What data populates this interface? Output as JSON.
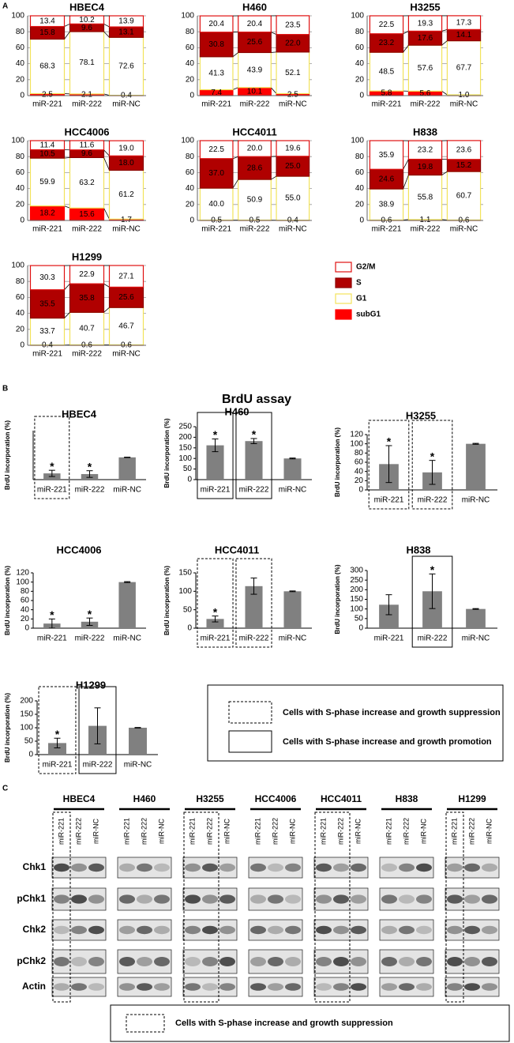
{
  "panel_a": {
    "letter": "A",
    "series": [
      {
        "name": "subG1",
        "color": "#ff0000",
        "fill": "#ff0000"
      },
      {
        "name": "G1",
        "color": "#f2e35a",
        "fill": "#ffffff"
      },
      {
        "name": "S",
        "color": "#8b0000",
        "fill": "#b00000"
      },
      {
        "name": "G2/M",
        "color": "#e01010",
        "fill": "#ffffff"
      }
    ],
    "charts": [
      {
        "type": "stacked-bar",
        "title": "HBEC4",
        "categories": [
          "miR-221",
          "miR-222",
          "miR-NC"
        ],
        "ylim": [
          0,
          100
        ],
        "yticks": [
          0,
          20,
          40,
          60,
          80,
          100
        ],
        "values": [
          [
            2.5,
            2.1,
            0.4
          ],
          [
            68.3,
            78.1,
            72.6
          ],
          [
            15.8,
            9.6,
            13.1
          ],
          [
            13.4,
            10.2,
            13.9
          ]
        ],
        "value_labels": [
          [
            "2.5",
            "2.1",
            "0.4"
          ],
          [
            "68.3",
            "78.1",
            "72.6"
          ],
          [
            "15.8",
            "9.6",
            "13.1"
          ],
          [
            "13.4",
            "10.2",
            "13.9"
          ]
        ]
      },
      {
        "type": "stacked-bar",
        "title": "H460",
        "categories": [
          "miR-221",
          "miR-222",
          "miR-NC"
        ],
        "ylim": [
          0,
          100
        ],
        "yticks": [
          0,
          20,
          40,
          60,
          80,
          100
        ],
        "values": [
          [
            7.4,
            10.1,
            2.5
          ],
          [
            41.3,
            43.9,
            52.1
          ],
          [
            30.8,
            25.6,
            22.0
          ],
          [
            20.4,
            20.4,
            23.5
          ]
        ],
        "value_labels": [
          [
            "7.4",
            "10.1",
            "2.5"
          ],
          [
            "41.3",
            "43.9",
            "52.1"
          ],
          [
            "30.8",
            "25.6",
            "22.0"
          ],
          [
            "20.4",
            "20.4",
            "23.5"
          ]
        ]
      },
      {
        "type": "stacked-bar",
        "title": "H3255",
        "categories": [
          "miR-221",
          "miR-222",
          "miR-NC"
        ],
        "ylim": [
          0,
          100
        ],
        "yticks": [
          0,
          20,
          40,
          60,
          80,
          100
        ],
        "values": [
          [
            5.8,
            5.6,
            1.0
          ],
          [
            48.5,
            57.6,
            67.7
          ],
          [
            23.2,
            17.6,
            14.1
          ],
          [
            22.5,
            19.3,
            17.3
          ]
        ],
        "value_labels": [
          [
            "5.8",
            "5.6",
            "1.0"
          ],
          [
            "48.5",
            "57.6",
            "67.7"
          ],
          [
            "23.2",
            "17.6",
            "14.1"
          ],
          [
            "22.5",
            "19.3",
            "17.3"
          ]
        ]
      },
      {
        "type": "stacked-bar",
        "title": "HCC4006",
        "categories": [
          "miR-221",
          "miR-222",
          "miR-NC"
        ],
        "ylim": [
          0,
          100
        ],
        "yticks": [
          0,
          20,
          40,
          60,
          80,
          100
        ],
        "values": [
          [
            18.2,
            15.6,
            1.7
          ],
          [
            59.9,
            63.2,
            61.2
          ],
          [
            10.5,
            9.6,
            18.0
          ],
          [
            11.4,
            11.6,
            19.0
          ]
        ],
        "value_labels": [
          [
            "18.2",
            "15.6",
            "1.7"
          ],
          [
            "59.9",
            "63.2",
            "61.2"
          ],
          [
            "10.5",
            "9.6",
            "18.0"
          ],
          [
            "11.4",
            "11.6",
            "19.0"
          ]
        ]
      },
      {
        "type": "stacked-bar",
        "title": "HCC4011",
        "categories": [
          "miR-221",
          "miR-222",
          "miR-NC"
        ],
        "ylim": [
          0,
          100
        ],
        "yticks": [
          0,
          20,
          40,
          60,
          80,
          100
        ],
        "values": [
          [
            0.5,
            0.5,
            0.4
          ],
          [
            40.0,
            50.9,
            55.0
          ],
          [
            37.0,
            28.6,
            25.0
          ],
          [
            22.5,
            20.0,
            19.6
          ]
        ],
        "value_labels": [
          [
            "0.5",
            "0.5",
            "0.4"
          ],
          [
            "40.0",
            "50.9",
            "55.0"
          ],
          [
            "37.0",
            "28.6",
            "25.0"
          ],
          [
            "22.5",
            "20.0",
            "19.6"
          ]
        ]
      },
      {
        "type": "stacked-bar",
        "title": "H838",
        "categories": [
          "miR-221",
          "miR-222",
          "miR-NC"
        ],
        "ylim": [
          0,
          100
        ],
        "yticks": [
          0,
          20,
          40,
          60,
          80,
          100
        ],
        "values": [
          [
            0.6,
            1.1,
            0.6
          ],
          [
            38.9,
            55.8,
            60.7
          ],
          [
            24.6,
            19.8,
            15.2
          ],
          [
            35.9,
            23.2,
            23.6
          ]
        ],
        "value_labels": [
          [
            "0.6",
            "1.1",
            "0.6"
          ],
          [
            "38.9",
            "55.8",
            "60.7"
          ],
          [
            "24.6",
            "19.8",
            "15.2"
          ],
          [
            "35.9",
            "23.2",
            "23.6"
          ]
        ]
      },
      {
        "type": "stacked-bar",
        "title": "H1299",
        "categories": [
          "miR-221",
          "miR-222",
          "miR-NC"
        ],
        "ylim": [
          0,
          100
        ],
        "yticks": [
          0,
          20,
          40,
          60,
          80,
          100
        ],
        "values": [
          [
            0.4,
            0.6,
            0.6
          ],
          [
            33.7,
            40.7,
            46.7
          ],
          [
            35.5,
            35.8,
            25.6
          ],
          [
            30.3,
            22.9,
            27.1
          ]
        ],
        "value_labels": [
          [
            "0.4",
            "0.6",
            "0.6"
          ],
          [
            "33.7",
            "40.7",
            "46.7"
          ],
          [
            "35.5",
            "35.8",
            "25.6"
          ],
          [
            "30.3",
            "22.9",
            "27.1"
          ]
        ]
      }
    ]
  },
  "panel_b": {
    "letter": "B",
    "title": "BrdU assay",
    "legend": [
      {
        "style": "dashed",
        "label": "Cells with S-phase increase and growth suppression"
      },
      {
        "style": "solid",
        "label": "Cells with S-phase increase and growth promotion"
      }
    ],
    "charts": [
      {
        "type": "bar",
        "title": "HBEC4",
        "ylabel": "BrdU incorporation (%)",
        "color": "#808080",
        "categories": [
          "miR-221",
          "miR-222",
          "miR-NC"
        ],
        "ylim": [
          0,
          220
        ],
        "values": [
          28,
          25,
          100
        ],
        "errors": [
          14,
          15,
          1
        ],
        "annotations": [
          "*",
          "*",
          null
        ],
        "boxes": [
          "dashed",
          null,
          null
        ]
      },
      {
        "type": "bar",
        "title": "H460",
        "ylabel": "BrdU incorporation (%)",
        "color": "#808080",
        "categories": [
          "miR-221",
          "miR-222",
          "miR-NC"
        ],
        "ylim": [
          0,
          250
        ],
        "yticks": [
          0,
          50,
          100,
          150,
          200,
          250
        ],
        "values": [
          162,
          182,
          100
        ],
        "errors": [
          30,
          12,
          2
        ],
        "annotations": [
          "*",
          "*",
          null
        ],
        "boxes": [
          "solid",
          "solid",
          null
        ]
      },
      {
        "type": "bar",
        "title": "H3255",
        "ylabel": "BrdU incorporation (%)",
        "color": "#808080",
        "categories": [
          "miR-221",
          "miR-222",
          "miR-NC"
        ],
        "ylim": [
          0,
          120
        ],
        "yticks": [
          0,
          20,
          40,
          60,
          80,
          100,
          120
        ],
        "values": [
          56,
          38,
          100
        ],
        "errors": [
          40,
          26,
          1
        ],
        "annotations": [
          "*",
          "*",
          null
        ],
        "boxes": [
          "dashed",
          "dashed",
          null
        ]
      },
      {
        "type": "bar",
        "title": "HCC4006",
        "ylabel": "BrdU incorporation (%)",
        "color": "#808080",
        "categories": [
          "miR-221",
          "miR-222",
          "miR-NC"
        ],
        "ylim": [
          0,
          120
        ],
        "yticks": [
          0,
          20,
          40,
          60,
          80,
          100,
          120
        ],
        "values": [
          10,
          14,
          100
        ],
        "errors": [
          10,
          8,
          1
        ],
        "annotations": [
          "*",
          "*",
          null
        ],
        "boxes": [
          null,
          null,
          null
        ]
      },
      {
        "type": "bar",
        "title": "HCC4011",
        "ylabel": "BrdU incorporation (%)",
        "color": "#808080",
        "categories": [
          "miR-221",
          "miR-222",
          "miR-NC"
        ],
        "ylim": [
          0,
          150
        ],
        "yticks": [
          0,
          50,
          100,
          150
        ],
        "values": [
          25,
          114,
          100
        ],
        "errors": [
          8,
          22,
          1
        ],
        "annotations": [
          "*",
          null,
          null
        ],
        "boxes": [
          "dashed",
          "dashed",
          null
        ]
      },
      {
        "type": "bar",
        "title": "H838",
        "ylabel": "BrdU incorporation (%)",
        "color": "#808080",
        "categories": [
          "miR-221",
          "miR-222",
          "miR-NC"
        ],
        "ylim": [
          0,
          300
        ],
        "yticks": [
          0,
          50,
          100,
          150,
          200,
          250,
          300
        ],
        "values": [
          122,
          192,
          100
        ],
        "errors": [
          52,
          90,
          2
        ],
        "annotations": [
          null,
          "*",
          null
        ],
        "boxes": [
          null,
          "solid",
          null
        ]
      },
      {
        "type": "bar",
        "title": "H1299",
        "ylabel": "BrdU incorporation (%)",
        "color": "#808080",
        "categories": [
          "miR-221",
          "miR-222",
          "miR-NC"
        ],
        "ylim": [
          0,
          200
        ],
        "yticks": [
          0,
          50,
          100,
          150,
          200
        ],
        "values": [
          43,
          107,
          100
        ],
        "errors": [
          18,
          67,
          1
        ],
        "annotations": [
          "*",
          null,
          null
        ],
        "boxes": [
          "dashed",
          "solid",
          null
        ]
      }
    ]
  },
  "panel_c": {
    "letter": "C",
    "cell_lines": [
      "HBEC4",
      "H460",
      "H3255",
      "HCC4006",
      "HCC4011",
      "H838",
      "H1299"
    ],
    "lanes": [
      "miR-221",
      "miR-222",
      "miR-NC"
    ],
    "proteins": [
      "Chk1",
      "pChk1",
      "Chk2",
      "pChk2",
      "Actin"
    ],
    "boxed_lanes": [
      [
        0
      ],
      [],
      [
        0,
        1
      ],
      [],
      [
        0,
        1
      ],
      [],
      [
        0
      ]
    ],
    "legend": "Cells with S-phase increase and growth suppression"
  }
}
